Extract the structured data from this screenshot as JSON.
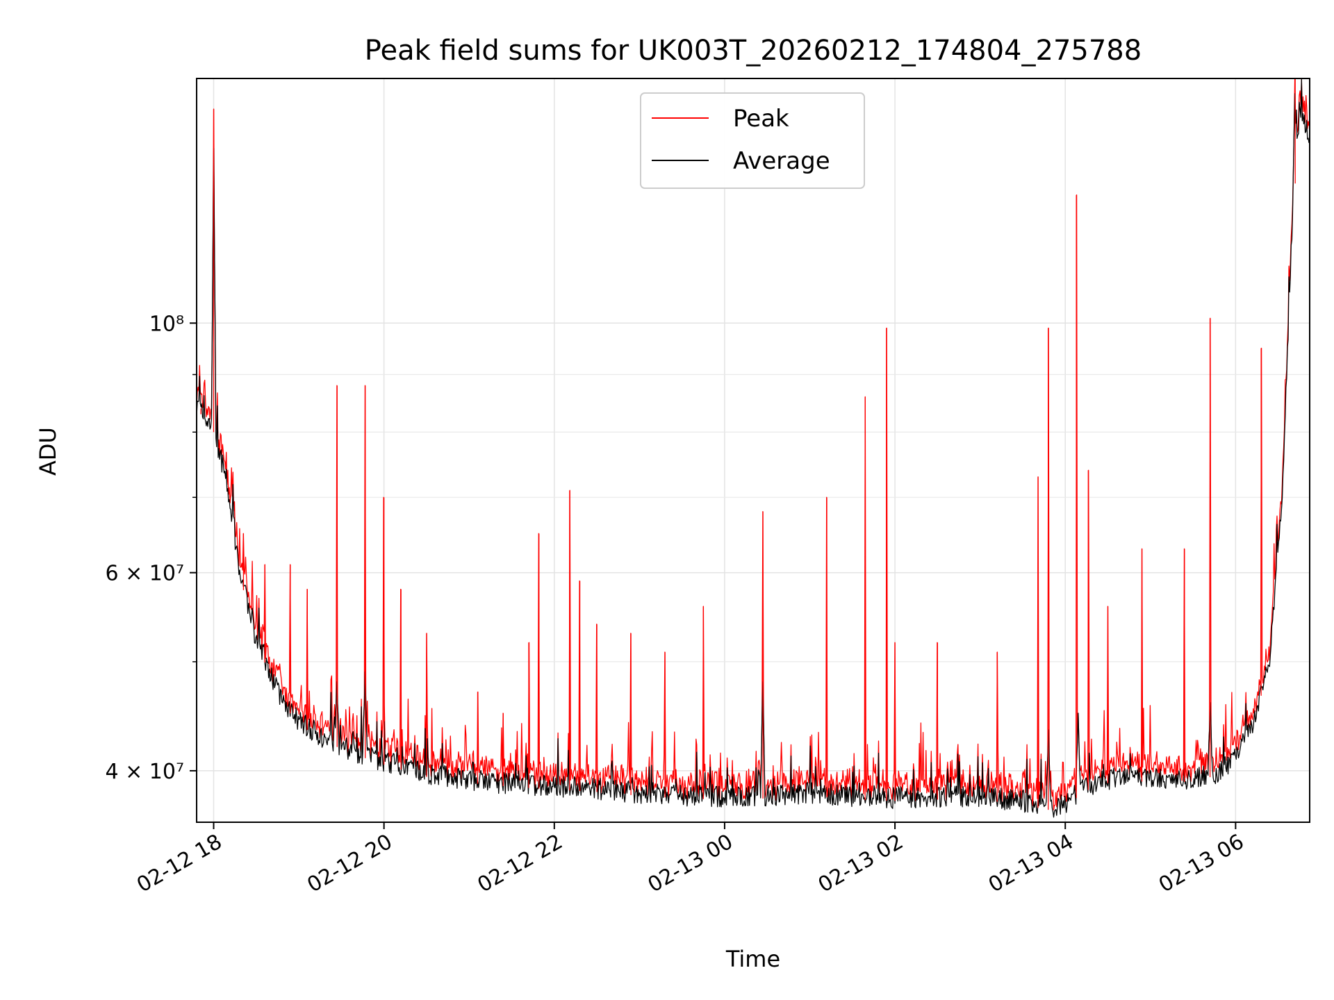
{
  "chart_data": {
    "type": "line",
    "title": "Peak field sums for UK003T_20260212_174804_275788",
    "xlabel": "Time",
    "ylabel": "ADU",
    "y_scale": "log",
    "x_range_hours": [
      -0.2,
      12.87
    ],
    "x_origin": "2026-02-12 18:00",
    "ylim": [
      36000000,
      165000000
    ],
    "x_ticks": [
      {
        "h": 0,
        "label": "02-12 18"
      },
      {
        "h": 2,
        "label": "02-12 20"
      },
      {
        "h": 4,
        "label": "02-12 22"
      },
      {
        "h": 6,
        "label": "02-13 00"
      },
      {
        "h": 8,
        "label": "02-13 02"
      },
      {
        "h": 10,
        "label": "02-13 04"
      },
      {
        "h": 12,
        "label": "02-13 06"
      }
    ],
    "y_major_ticks": [
      {
        "v": 40000000,
        "label": "4 × 10⁷"
      },
      {
        "v": 60000000,
        "label": "6 × 10⁷"
      },
      {
        "v": 100000000,
        "label": "10⁸"
      }
    ],
    "y_minor_ticks": [
      50000000,
      70000000,
      80000000,
      90000000
    ],
    "grid": true,
    "legend": {
      "position": "top-center",
      "entries": [
        {
          "name": "Peak",
          "color": "#ff0000"
        },
        {
          "name": "Average",
          "color": "#000000"
        }
      ]
    },
    "series": [
      {
        "name": "Average",
        "color": "#000000",
        "baseline_x_hours": [
          -0.2,
          0.0,
          0.15,
          0.3,
          0.5,
          0.8,
          1.0,
          1.3,
          1.6,
          2.0,
          2.5,
          3.0,
          3.5,
          4.0,
          4.5,
          5.0,
          5.5,
          6.0,
          6.5,
          7.0,
          7.5,
          8.0,
          8.5,
          9.0,
          9.5,
          9.9,
          10.3,
          10.6,
          11.0,
          11.4,
          11.8,
          11.95,
          12.2,
          12.4,
          12.55,
          12.65,
          12.75,
          12.87
        ],
        "baseline_y": [
          84000000,
          80000000,
          72000000,
          60000000,
          52000000,
          46000000,
          44000000,
          42500000,
          41500000,
          40500000,
          39500000,
          39000000,
          38700000,
          38500000,
          38300000,
          38000000,
          37800000,
          37700000,
          37800000,
          38000000,
          37700000,
          37600000,
          37700000,
          37700000,
          37300000,
          36800000,
          38600000,
          39200000,
          39100000,
          39100000,
          39600000,
          40500000,
          43500000,
          50000000,
          70000000,
          115000000,
          154000000,
          145000000
        ],
        "spikes": [
          {
            "h": 0.0,
            "v": 143000000
          },
          {
            "h": 1.45,
            "v": 48000000
          },
          {
            "h": 1.78,
            "v": 49000000
          },
          {
            "h": 6.45,
            "v": 48000000
          },
          {
            "h": 9.8,
            "v": 43500000
          },
          {
            "h": 10.15,
            "v": 45000000
          },
          {
            "h": 11.7,
            "v": 46000000
          },
          {
            "h": 12.7,
            "v": 160000000
          }
        ]
      },
      {
        "name": "Peak",
        "color": "#ff0000",
        "spikes": [
          {
            "h": -0.15,
            "v": 84000000
          },
          {
            "h": 0.0,
            "v": 155000000
          },
          {
            "h": 0.35,
            "v": 65000000
          },
          {
            "h": 0.6,
            "v": 61000000
          },
          {
            "h": 0.9,
            "v": 61000000
          },
          {
            "h": 1.1,
            "v": 58000000
          },
          {
            "h": 1.45,
            "v": 88000000
          },
          {
            "h": 1.78,
            "v": 88000000
          },
          {
            "h": 2.0,
            "v": 70000000
          },
          {
            "h": 2.2,
            "v": 58000000
          },
          {
            "h": 2.5,
            "v": 53000000
          },
          {
            "h": 3.1,
            "v": 47000000
          },
          {
            "h": 3.4,
            "v": 45000000
          },
          {
            "h": 3.7,
            "v": 52000000
          },
          {
            "h": 3.82,
            "v": 65000000
          },
          {
            "h": 4.18,
            "v": 71000000
          },
          {
            "h": 4.3,
            "v": 59000000
          },
          {
            "h": 4.5,
            "v": 54000000
          },
          {
            "h": 4.9,
            "v": 53000000
          },
          {
            "h": 5.3,
            "v": 51000000
          },
          {
            "h": 5.75,
            "v": 56000000
          },
          {
            "h": 6.45,
            "v": 68000000
          },
          {
            "h": 7.2,
            "v": 70000000
          },
          {
            "h": 7.65,
            "v": 86000000
          },
          {
            "h": 7.9,
            "v": 99000000
          },
          {
            "h": 8.0,
            "v": 52000000
          },
          {
            "h": 8.5,
            "v": 52000000
          },
          {
            "h": 9.2,
            "v": 51000000
          },
          {
            "h": 9.68,
            "v": 73000000
          },
          {
            "h": 9.8,
            "v": 99000000
          },
          {
            "h": 10.13,
            "v": 130000000
          },
          {
            "h": 10.27,
            "v": 74000000
          },
          {
            "h": 10.5,
            "v": 56000000
          },
          {
            "h": 10.9,
            "v": 63000000
          },
          {
            "h": 11.4,
            "v": 63000000
          },
          {
            "h": 11.7,
            "v": 101000000
          },
          {
            "h": 12.3,
            "v": 95000000
          },
          {
            "h": 12.7,
            "v": 165000000
          }
        ]
      }
    ]
  }
}
